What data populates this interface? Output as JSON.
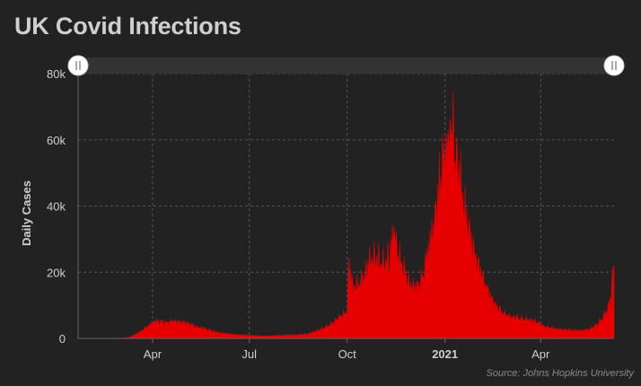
{
  "title": "UK Covid Infections",
  "source": "Source: Johns Hopkins University",
  "colors": {
    "background": "#222222",
    "series": "#e60000",
    "grid": "#555555",
    "text": "#cfcfcf",
    "navigator": "#333333"
  },
  "chart_data": {
    "type": "area",
    "title": "UK Covid Infections",
    "ylabel": "Daily Cases",
    "xlabel": "",
    "xlim": [
      "2020-01-22",
      "2021-06-09"
    ],
    "ylim": [
      0,
      80000
    ],
    "y_ticks": [
      {
        "value": 0,
        "label": "0"
      },
      {
        "value": 20000,
        "label": "20k"
      },
      {
        "value": 40000,
        "label": "40k"
      },
      {
        "value": 60000,
        "label": "60k"
      },
      {
        "value": 80000,
        "label": "80k"
      }
    ],
    "x_ticks": [
      {
        "date": "2020-04-01",
        "label": "Apr",
        "bold": false
      },
      {
        "date": "2020-07-01",
        "label": "Jul",
        "bold": false
      },
      {
        "date": "2020-10-01",
        "label": "Oct",
        "bold": false
      },
      {
        "date": "2021-01-01",
        "label": "2021",
        "bold": true
      },
      {
        "date": "2021-04-01",
        "label": "Apr",
        "bold": false
      }
    ],
    "grid": true,
    "legend": "none",
    "series": [
      {
        "points": [
          [
            "2020-01-22",
            0
          ],
          [
            "2020-02-20",
            0
          ],
          [
            "2020-03-01",
            50
          ],
          [
            "2020-03-10",
            300
          ],
          [
            "2020-03-18",
            1500
          ],
          [
            "2020-03-25",
            3000
          ],
          [
            "2020-03-31",
            4500
          ],
          [
            "2020-04-05",
            5200
          ],
          [
            "2020-04-12",
            4700
          ],
          [
            "2020-04-20",
            5000
          ],
          [
            "2020-04-28",
            4900
          ],
          [
            "2020-05-05",
            4500
          ],
          [
            "2020-05-12",
            3500
          ],
          [
            "2020-05-20",
            2800
          ],
          [
            "2020-06-01",
            1800
          ],
          [
            "2020-06-15",
            1200
          ],
          [
            "2020-07-01",
            900
          ],
          [
            "2020-07-15",
            700
          ],
          [
            "2020-08-01",
            900
          ],
          [
            "2020-08-15",
            1100
          ],
          [
            "2020-08-25",
            1300
          ],
          [
            "2020-09-05",
            2500
          ],
          [
            "2020-09-15",
            4000
          ],
          [
            "2020-09-25",
            6500
          ],
          [
            "2020-10-01",
            8000
          ],
          [
            "2020-10-03",
            22000
          ],
          [
            "2020-10-06",
            15000
          ],
          [
            "2020-10-12",
            16000
          ],
          [
            "2020-10-18",
            19000
          ],
          [
            "2020-10-22",
            23000
          ],
          [
            "2020-10-28",
            24000
          ],
          [
            "2020-11-03",
            22000
          ],
          [
            "2020-11-10",
            24000
          ],
          [
            "2020-11-14",
            33000
          ],
          [
            "2020-11-17",
            25000
          ],
          [
            "2020-11-22",
            22000
          ],
          [
            "2020-11-28",
            16000
          ],
          [
            "2020-12-03",
            15000
          ],
          [
            "2020-12-08",
            16000
          ],
          [
            "2020-12-12",
            20000
          ],
          [
            "2020-12-15",
            25000
          ],
          [
            "2020-12-18",
            28000
          ],
          [
            "2020-12-22",
            36000
          ],
          [
            "2020-12-26",
            42000
          ],
          [
            "2020-12-29",
            53000
          ],
          [
            "2021-01-01",
            58000
          ],
          [
            "2021-01-04",
            60000
          ],
          [
            "2021-01-06",
            63000
          ],
          [
            "2021-01-08",
            68000
          ],
          [
            "2021-01-11",
            55000
          ],
          [
            "2021-01-15",
            47000
          ],
          [
            "2021-01-20",
            38000
          ],
          [
            "2021-01-25",
            30000
          ],
          [
            "2021-02-01",
            22000
          ],
          [
            "2021-02-08",
            16000
          ],
          [
            "2021-02-15",
            11000
          ],
          [
            "2021-02-22",
            8000
          ],
          [
            "2021-03-01",
            6500
          ],
          [
            "2021-03-10",
            6000
          ],
          [
            "2021-03-20",
            5500
          ],
          [
            "2021-03-28",
            5000
          ],
          [
            "2021-04-05",
            3500
          ],
          [
            "2021-04-15",
            2800
          ],
          [
            "2021-04-25",
            2500
          ],
          [
            "2021-05-05",
            2300
          ],
          [
            "2021-05-15",
            2500
          ],
          [
            "2021-05-22",
            3500
          ],
          [
            "2021-05-28",
            5500
          ],
          [
            "2021-06-02",
            8000
          ],
          [
            "2021-06-06",
            12000
          ],
          [
            "2021-06-08",
            18000
          ],
          [
            "2021-06-09",
            22000
          ]
        ]
      }
    ]
  }
}
